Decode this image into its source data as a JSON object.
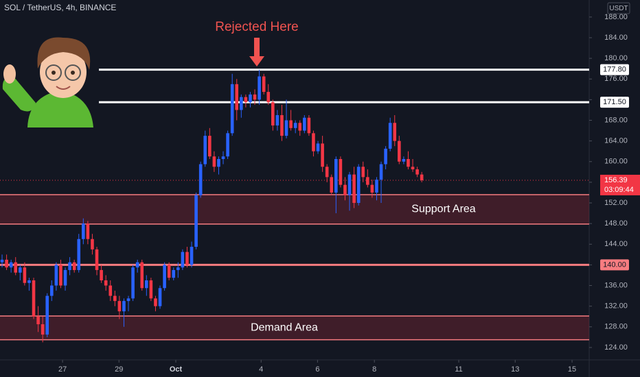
{
  "chart_data": {
    "type": "candlestick",
    "title": "SOL / TetherUS, 4h, BINANCE",
    "currency": "USDT",
    "up_color": "#2962ff",
    "down_color": "#f23645",
    "x": [
      0,
      1,
      2,
      3,
      4,
      5,
      6,
      7,
      8,
      9,
      10,
      11,
      12,
      13,
      14,
      15,
      16,
      17,
      18,
      19,
      20,
      21,
      22,
      23,
      24,
      25,
      26,
      27,
      28,
      29,
      30,
      31,
      32,
      33,
      34,
      35,
      36,
      37,
      38,
      39,
      40,
      41,
      42,
      43,
      44,
      45,
      46,
      47,
      48,
      49,
      50,
      51,
      52,
      53,
      54,
      55,
      56,
      57,
      58,
      59,
      60,
      61,
      62,
      63,
      64,
      65,
      66,
      67,
      68,
      69,
      70,
      71,
      72,
      73,
      74,
      75,
      76,
      77,
      78,
      79,
      80,
      81,
      82,
      83,
      84,
      85,
      86,
      87,
      88,
      89,
      90,
      91,
      92,
      93
    ],
    "open": [
      140.5,
      141,
      139.5,
      140.5,
      138.5,
      139.5,
      136.5,
      137,
      130,
      128.5,
      126.5,
      134,
      136,
      140,
      136,
      139,
      140.5,
      139,
      145,
      148,
      145,
      143,
      139,
      137,
      136,
      134,
      133,
      131,
      133,
      133.5,
      139.5,
      140.5,
      135.5,
      137,
      133.5,
      132,
      135.5,
      140,
      137.5,
      139,
      139.5,
      142.5,
      140,
      143.5,
      153.5,
      159.5,
      165,
      161,
      159,
      160.5,
      161,
      165.5,
      175,
      170,
      172.5,
      171.5,
      173,
      172,
      176.5,
      173.5,
      171.5,
      167,
      169,
      165,
      168,
      166.5,
      167.5,
      166,
      168.5,
      165.5,
      162,
      163.5,
      159,
      157,
      154,
      160.5,
      155.5,
      153.5,
      157.5,
      152,
      159,
      157,
      155.5,
      154,
      156.5,
      159.5,
      162.5,
      167.5,
      164,
      160,
      160.5,
      159,
      158.5,
      157.5
    ],
    "high": [
      142,
      142,
      141,
      141.5,
      140,
      140.5,
      137.5,
      137.5,
      132,
      130,
      134.5,
      137,
      140.5,
      141,
      139.5,
      141.5,
      141,
      146,
      149,
      148.5,
      146,
      143.5,
      140,
      138,
      137,
      135,
      134,
      133.5,
      134,
      140,
      141,
      141,
      138,
      137.5,
      134,
      136,
      140.5,
      140.5,
      139.5,
      140.5,
      143,
      143.5,
      144.5,
      154,
      160,
      166,
      166.5,
      162,
      161,
      162,
      166,
      177,
      176,
      173,
      173,
      173.5,
      174,
      177.8,
      177,
      175,
      172,
      170,
      171,
      172,
      170,
      168,
      168,
      169,
      169,
      166,
      164,
      165,
      159.5,
      157.5,
      161,
      161,
      157,
      158,
      159,
      159.5,
      160,
      158.5,
      156.5,
      157,
      160,
      163,
      168.5,
      169,
      165,
      161,
      162,
      160.5,
      159,
      158
    ],
    "low": [
      139.5,
      139,
      138.5,
      138,
      137,
      136,
      135,
      129.5,
      127,
      125,
      126,
      133,
      135,
      135.5,
      135,
      138,
      138.5,
      138.5,
      144,
      144,
      142,
      138,
      136.5,
      135,
      133,
      132,
      129.5,
      128,
      131,
      133,
      138.5,
      135,
      134,
      133,
      131,
      131.5,
      135,
      137,
      137,
      137.5,
      139,
      139.5,
      139.5,
      143,
      153,
      159,
      160.5,
      158,
      157.5,
      159.5,
      160.5,
      165,
      168,
      168.5,
      170.5,
      170.5,
      171,
      171,
      173,
      171,
      166,
      166,
      164,
      164.5,
      166,
      165.5,
      165,
      165.5,
      165,
      161,
      161.5,
      158,
      156,
      153.5,
      150,
      155,
      152.5,
      150.5,
      151,
      151.5,
      156,
      155,
      153,
      152.5,
      152,
      158.5,
      162,
      163,
      159.5,
      159.5,
      158.5,
      158,
      157,
      156
    ],
    "close": [
      141,
      139.5,
      140.5,
      138.5,
      139.5,
      136.5,
      137,
      130,
      128.5,
      126.5,
      134,
      136,
      140,
      136,
      139,
      140.5,
      139,
      145,
      148,
      145,
      143,
      139,
      137,
      136,
      134,
      133,
      131,
      133,
      133.5,
      139.5,
      140.5,
      135.5,
      137,
      133.5,
      132,
      135.5,
      140,
      137.5,
      139,
      139.5,
      142.5,
      140,
      143.5,
      153.5,
      159.5,
      165,
      161,
      159,
      160.5,
      161,
      165.5,
      175,
      170,
      172.5,
      171.5,
      173,
      172,
      176.5,
      173.5,
      171.5,
      167,
      169,
      165,
      168,
      166.5,
      167.5,
      166,
      168.5,
      165.5,
      162,
      163.5,
      159,
      157,
      154,
      160.5,
      155.5,
      153.5,
      157.5,
      152,
      159,
      157,
      155.5,
      154,
      156.5,
      159.5,
      162.5,
      167.5,
      164,
      160,
      160.5,
      159,
      158.5,
      157.5,
      156.39
    ],
    "xlim": [
      -0.46,
      130.1
    ],
    "xticks": [
      {
        "value": 13.4,
        "label": "27"
      },
      {
        "value": 25.9,
        "label": "29"
      },
      {
        "value": 38.5,
        "label": "Oct"
      },
      {
        "value": 57.4,
        "label": "4"
      },
      {
        "value": 69.9,
        "label": "6"
      },
      {
        "value": 82.5,
        "label": "8"
      },
      {
        "value": 101.2,
        "label": "11"
      },
      {
        "value": 113.7,
        "label": "13"
      },
      {
        "value": 126.3,
        "label": "15"
      }
    ],
    "ylim": [
      121.6,
      191.3
    ],
    "yticks": [
      {
        "value": 124,
        "label": "124.00"
      },
      {
        "value": 128,
        "label": "128.00"
      },
      {
        "value": 132,
        "label": "132.00"
      },
      {
        "value": 136,
        "label": "136.00"
      },
      {
        "value": 140,
        "label": "140.00"
      },
      {
        "value": 144,
        "label": "144.00"
      },
      {
        "value": 148,
        "label": "148.00"
      },
      {
        "value": 152,
        "label": "152.00"
      },
      {
        "value": 156,
        "label": "156.00"
      },
      {
        "value": 160,
        "label": "160.00"
      },
      {
        "value": 164,
        "label": "164.00"
      },
      {
        "value": 168,
        "label": "168.00"
      },
      {
        "value": 172,
        "label": "172.00"
      },
      {
        "value": 176,
        "label": "176.00"
      },
      {
        "value": 180,
        "label": "180.00"
      },
      {
        "value": 184,
        "label": "184.00"
      },
      {
        "value": 188,
        "label": "188.00"
      }
    ],
    "levels": [
      {
        "value": 177.8,
        "label": "177.80",
        "color": "#ffffff"
      },
      {
        "value": 171.5,
        "label": "171.50",
        "color": "#ffffff"
      },
      {
        "value": 140,
        "label": "140.00",
        "color": "#f77c80"
      }
    ],
    "zones": [
      {
        "name": "Support Area",
        "low": 147.9,
        "high": 153.6
      },
      {
        "name": "Demand Area",
        "low": 125.5,
        "high": 130.1
      }
    ],
    "last_price": {
      "value": 156.39,
      "label": "156.39"
    },
    "countdown": "03:09:44",
    "annotation": "Rejected Here"
  }
}
